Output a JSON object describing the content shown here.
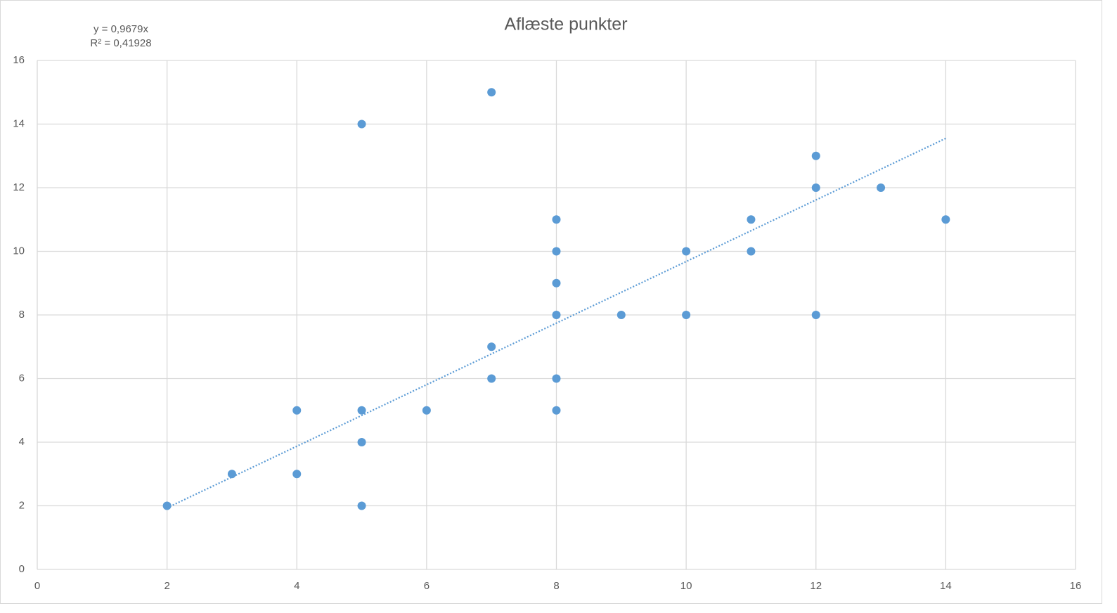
{
  "chart_data": {
    "type": "scatter",
    "title": "Aflæste punkter",
    "x": [
      2,
      3,
      4,
      4,
      5,
      5,
      5,
      5,
      6,
      7,
      7,
      7,
      8,
      8,
      8,
      8,
      8,
      8,
      9,
      10,
      10,
      11,
      11,
      12,
      12,
      12,
      13,
      14
    ],
    "values": [
      2,
      3,
      5,
      3,
      14,
      5,
      4,
      2,
      5,
      15,
      7,
      6,
      11,
      10,
      9,
      8,
      6,
      5,
      8,
      10,
      8,
      11,
      10,
      13,
      12,
      8,
      12,
      11
    ],
    "color": "#5b9bd5",
    "trendline": {
      "slope": 0.9679,
      "xrange": [
        2,
        14
      ],
      "equation_label": "y = 0,9679x",
      "r2_label": "R² = 0,41928"
    },
    "xlim": [
      0,
      16
    ],
    "xticks": [
      0,
      2,
      4,
      6,
      8,
      10,
      12,
      14,
      16
    ],
    "ylim": [
      0,
      16
    ],
    "yticks": [
      0,
      2,
      4,
      6,
      8,
      10,
      12,
      14,
      16
    ],
    "grid": true
  }
}
